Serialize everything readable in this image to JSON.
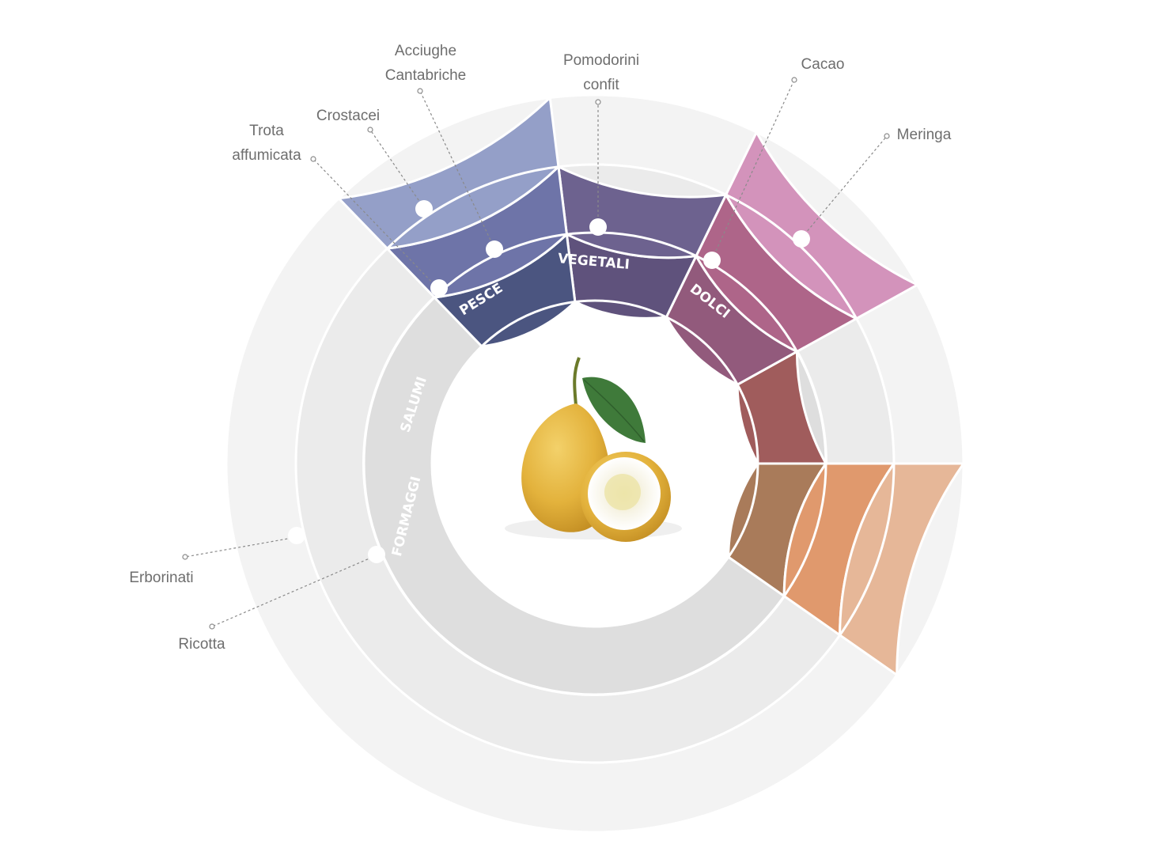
{
  "categories": [
    {
      "key": "formaggi",
      "label": "FORMAGGI",
      "ring1": "#a97b5a",
      "ring2": "#e0996d",
      "ring3": "#e6b798"
    },
    {
      "key": "salumi",
      "label": "SALUMI",
      "ring1": "#a05c5c",
      "ring2": null,
      "ring3": null
    },
    {
      "key": "pesce",
      "label": "PESCE",
      "ring1": "#925a7c",
      "ring2": "#ae6589",
      "ring3": "#d393bb"
    },
    {
      "key": "vegetali",
      "label": "VEGETALI",
      "ring1": "#5f527c",
      "ring2": "#6d628f",
      "ring3": null
    },
    {
      "key": "dolci",
      "label": "DOLCI",
      "ring1": "#4b5580",
      "ring2": "#6e74a8",
      "ring3": "#949fc8"
    }
  ],
  "pairings": [
    {
      "name": "Erborinati",
      "category": "formaggi"
    },
    {
      "name": "Ricotta",
      "category": "formaggi"
    },
    {
      "name": "Trota affumicata",
      "lines": [
        "Trota",
        "affumicata"
      ],
      "category": "pesce"
    },
    {
      "name": "Crostacei",
      "category": "pesce"
    },
    {
      "name": "Acciughe Cantabriche",
      "lines": [
        "Acciughe",
        "Cantabriche"
      ],
      "category": "pesce"
    },
    {
      "name": "Pomodorini confit",
      "lines": [
        "Pomodorini",
        "confit"
      ],
      "category": "vegetali"
    },
    {
      "name": "Cacao",
      "category": "dolci"
    },
    {
      "name": "Meringa",
      "category": "dolci"
    }
  ],
  "center_image": "citron-fruit-image",
  "empty_ring_colors": [
    "#dedede",
    "#ebebeb",
    "#f3f3f3"
  ]
}
